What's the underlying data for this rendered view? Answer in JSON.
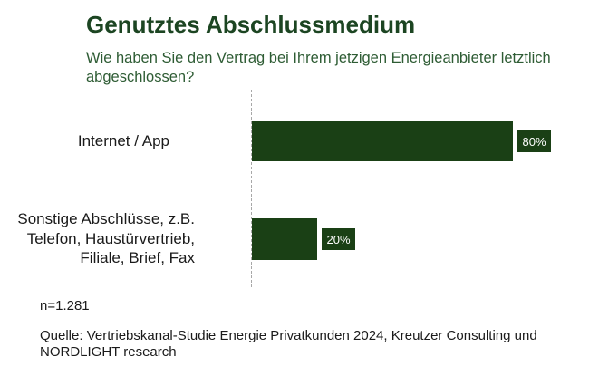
{
  "header": {
    "title": "Genutztes Abschlussmedium",
    "subtitle_line1": "Wie haben Sie den Vertrag bei Ihrem jetzigen Energieanbieter letztlich",
    "subtitle_line2": "abgeschlossen?"
  },
  "labels": {
    "category1_line1": "Internet / App",
    "category2_line1": "Sonstige Abschlüsse, z.B.",
    "category2_line2": "Telefon, Haustürvertrieb,",
    "category2_line3": "Filiale, Brief, Fax",
    "value1": "80%",
    "value2": "20%"
  },
  "footer": {
    "sample_size": "n=1.281",
    "source_line1": "Quelle: Vertriebskanal-Studie Energie Privatkunden 2024, Kreutzer Consulting und",
    "source_line2": "NORDLIGHT research"
  },
  "colors": {
    "title_text": "#1c4522",
    "subtitle_text": "#2e5c34",
    "bar_fill": "#1a4015",
    "value_badge_bg": "#1a4015",
    "value_badge_text": "#ffffff",
    "category_text": "#1a1a1a",
    "baseline_dash": "#a8a8a8",
    "footer_text": "#1a1a1a"
  },
  "chart_data": {
    "type": "bar",
    "orientation": "horizontal",
    "title": "Genutztes Abschlussmedium",
    "subtitle": "Wie haben Sie den Vertrag bei Ihrem jetzigen Energieanbieter letztlich abgeschlossen?",
    "categories": [
      "Internet / App",
      "Sonstige Abschlüsse, z.B. Telefon, Haustürvertrieb, Filiale, Brief, Fax"
    ],
    "values": [
      80,
      20
    ],
    "unit": "%",
    "data_labels": [
      "80%",
      "20%"
    ],
    "xlim": [
      0,
      100
    ],
    "grid": false,
    "legend": false,
    "axis_baseline": "dashed vertical line at 0",
    "annotations": [
      "n=1.281",
      "Quelle: Vertriebskanal-Studie Energie Privatkunden 2024, Kreutzer Consulting und NORDLIGHT research"
    ]
  }
}
